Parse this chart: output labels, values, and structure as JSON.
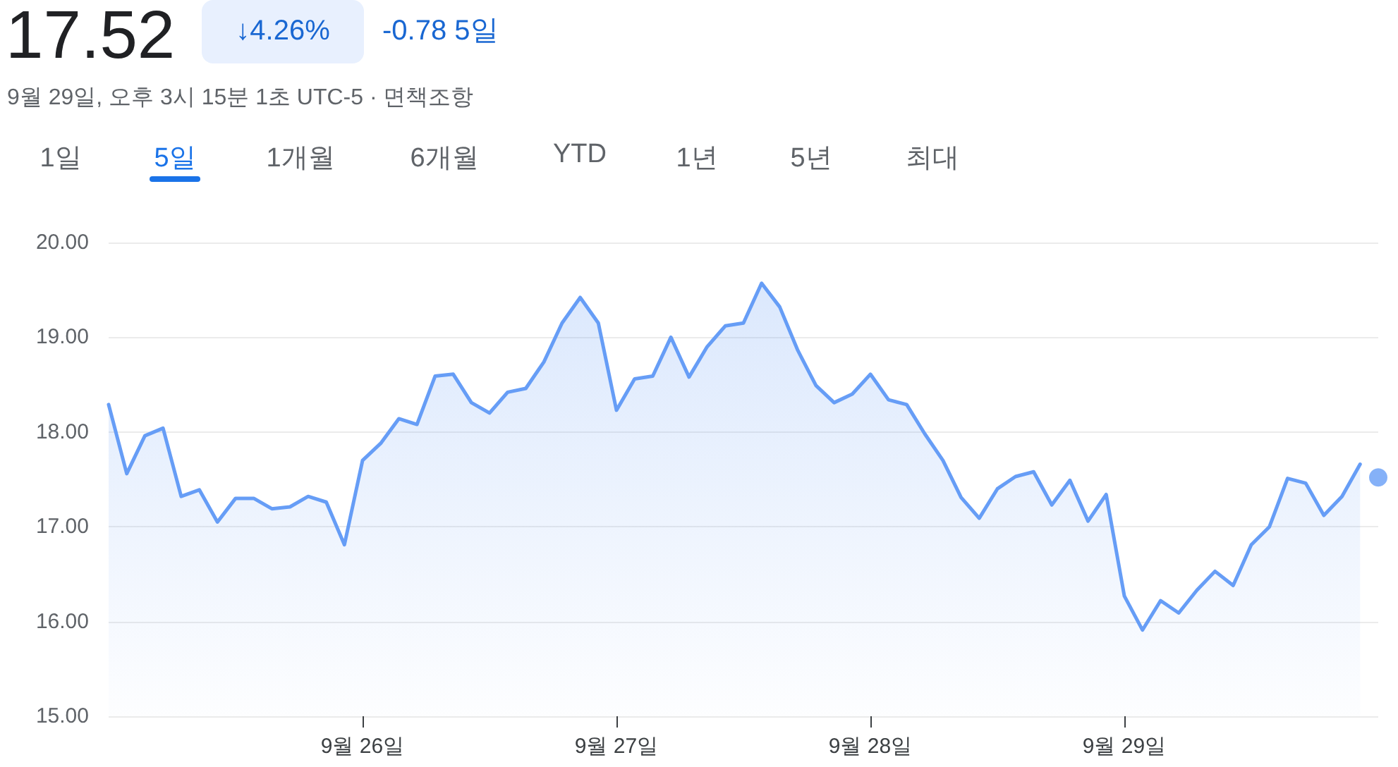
{
  "chart_data": {
    "type": "area",
    "title": "17.52",
    "subtitle": "9월 29일, 오후 3시 15분 1초 UTC-5 · 면책조항",
    "annotations": [
      "↓4.26%",
      "-0.78 5일",
      "1일",
      "5일",
      "1개월",
      "6개월",
      "YTD",
      "1년",
      "5년",
      "최대"
    ],
    "categories": [
      null,
      null,
      null,
      null,
      null,
      null,
      null,
      null,
      null,
      null,
      null,
      null,
      null,
      null,
      "9월 26일",
      null,
      null,
      null,
      null,
      null,
      null,
      null,
      null,
      null,
      null,
      null,
      null,
      null,
      "9월 27일",
      null,
      null,
      null,
      null,
      null,
      null,
      null,
      null,
      null,
      null,
      null,
      null,
      null,
      "9월 28일",
      null,
      null,
      null,
      null,
      null,
      null,
      null,
      null,
      null,
      null,
      null,
      null,
      null,
      "9월 29일",
      null,
      null,
      null,
      null,
      null,
      null,
      null,
      null,
      null,
      null,
      null,
      null,
      null,
      null
    ],
    "series": [
      {
        "color": "#669df6",
        "values": [
          18.29,
          17.56,
          17.96,
          18.04,
          17.32,
          17.39,
          17.05,
          17.3,
          17.3,
          17.19,
          17.21,
          17.32,
          17.26,
          16.81,
          17.7,
          17.88,
          18.14,
          18.08,
          18.59,
          18.61,
          18.31,
          18.2,
          18.42,
          18.46,
          18.74,
          19.15,
          19.42,
          19.15,
          18.23,
          18.56,
          18.59,
          19.0,
          18.58,
          18.9,
          19.12,
          19.15,
          19.57,
          19.32,
          18.86,
          18.49,
          18.31,
          18.4,
          18.61,
          18.34,
          18.29,
          17.98,
          17.7,
          17.31,
          17.09,
          17.4,
          17.53,
          17.58,
          17.23,
          17.49,
          17.06,
          17.34,
          16.27,
          15.91,
          16.22,
          16.09,
          16.33,
          16.53,
          16.38,
          16.81,
          17.0,
          17.51,
          17.46,
          17.12,
          17.32,
          17.66,
          null
        ]
      },
      {
        "type": "scatter",
        "color": "#669df6",
        "marker": "circle",
        "values": [
          null,
          null,
          null,
          null,
          null,
          null,
          null,
          null,
          null,
          null,
          null,
          null,
          null,
          null,
          null,
          null,
          null,
          null,
          null,
          null,
          null,
          null,
          null,
          null,
          null,
          null,
          null,
          null,
          null,
          null,
          null,
          null,
          null,
          null,
          null,
          null,
          null,
          null,
          null,
          null,
          null,
          null,
          null,
          null,
          null,
          null,
          null,
          null,
          null,
          null,
          null,
          null,
          null,
          null,
          null,
          null,
          null,
          null,
          null,
          null,
          null,
          null,
          null,
          null,
          null,
          null,
          null,
          null,
          null,
          null,
          17.52
        ]
      }
    ],
    "ylim": [
      15,
      20
    ],
    "yticks": [
      {
        "value": 15,
        "label": "15.00"
      },
      {
        "value": 16,
        "label": "16.00"
      },
      {
        "value": 17,
        "label": "17.00"
      },
      {
        "value": 18,
        "label": "18.00"
      },
      {
        "value": 19,
        "label": "19.00"
      },
      {
        "value": 20,
        "label": "20.00"
      }
    ],
    "grid": "y",
    "marker": "none"
  }
}
